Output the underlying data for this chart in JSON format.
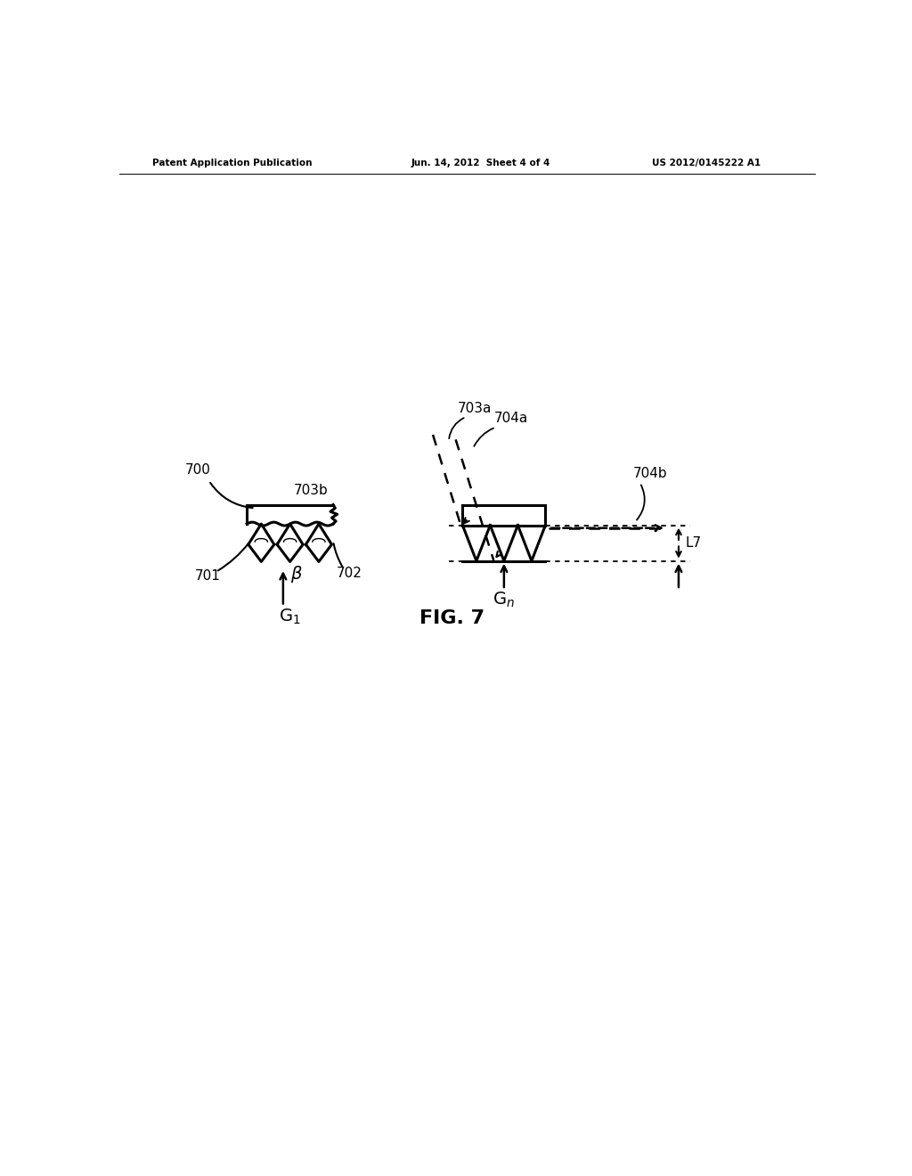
{
  "header_left": "Patent Application Publication",
  "header_mid": "Jun. 14, 2012  Sheet 4 of 4",
  "header_right": "US 2012/0145222 A1",
  "figure_label": "FIG. 7",
  "bg_color": "#ffffff",
  "line_color": "#000000"
}
